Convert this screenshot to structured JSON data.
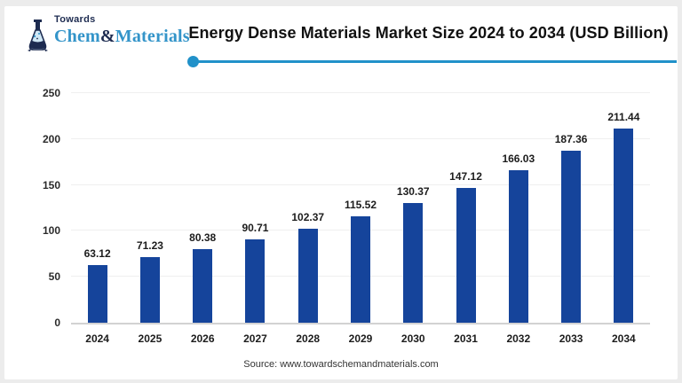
{
  "page": {
    "card_background": "#ffffff",
    "frame_border_color": "#ececec"
  },
  "logo": {
    "towards_label": "Towards",
    "brand_word1": "Chem",
    "brand_amp": "&",
    "brand_word2": "Materials",
    "navy_color": "#1d2b50",
    "blue_color": "#3394c9",
    "flask_icon": "flask-icon"
  },
  "header": {
    "title": "Energy Dense Materials Market Size 2024 to 2034 (USD Billion)",
    "accent_color": "#2191c9"
  },
  "chart_data": {
    "type": "bar",
    "categories": [
      "2024",
      "2025",
      "2026",
      "2027",
      "2028",
      "2029",
      "2030",
      "2031",
      "2032",
      "2033",
      "2034"
    ],
    "values": [
      63.12,
      71.23,
      80.38,
      90.71,
      102.37,
      115.52,
      130.37,
      147.12,
      166.03,
      187.36,
      211.44
    ],
    "title": "Energy Dense Materials Market Size 2024 to 2034 (USD Billion)",
    "xlabel": "",
    "ylabel": "",
    "ylim": [
      0,
      250
    ],
    "yticks": [
      0,
      50,
      100,
      150,
      200,
      250
    ],
    "bar_color": "#15449b",
    "grid": true,
    "gridline_color": "#efefef",
    "value_labels": true,
    "legend": "none"
  },
  "footer": {
    "source": "Source: www.towardschemandmaterials.com"
  }
}
